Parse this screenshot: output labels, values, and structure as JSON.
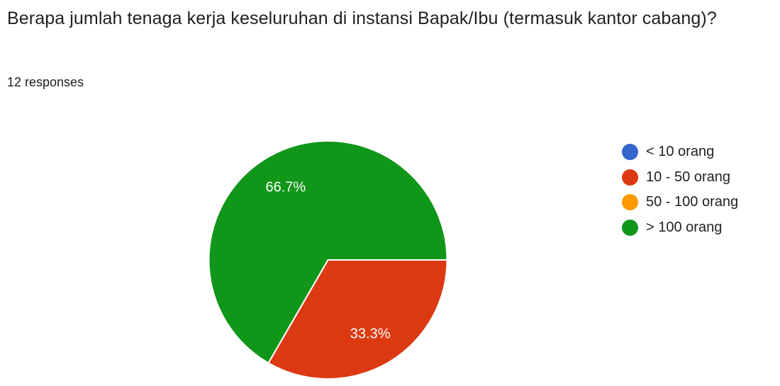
{
  "question": {
    "title": "Berapa jumlah tenaga kerja keseluruhan di instansi Bapak/Ibu (termasuk kantor cabang)?",
    "responses": "12 responses"
  },
  "chart_data": {
    "type": "pie",
    "categories": [
      "< 10 orang",
      "10 - 50 orang",
      "50 - 100 orang",
      "> 100 orang"
    ],
    "values": [
      0,
      4,
      0,
      8
    ],
    "labels": [
      "",
      "33.3%",
      "",
      "66.7%"
    ],
    "colors": [
      "#3366cc",
      "#dc3912",
      "#ff9900",
      "#109618"
    ],
    "legend_position": "right"
  }
}
